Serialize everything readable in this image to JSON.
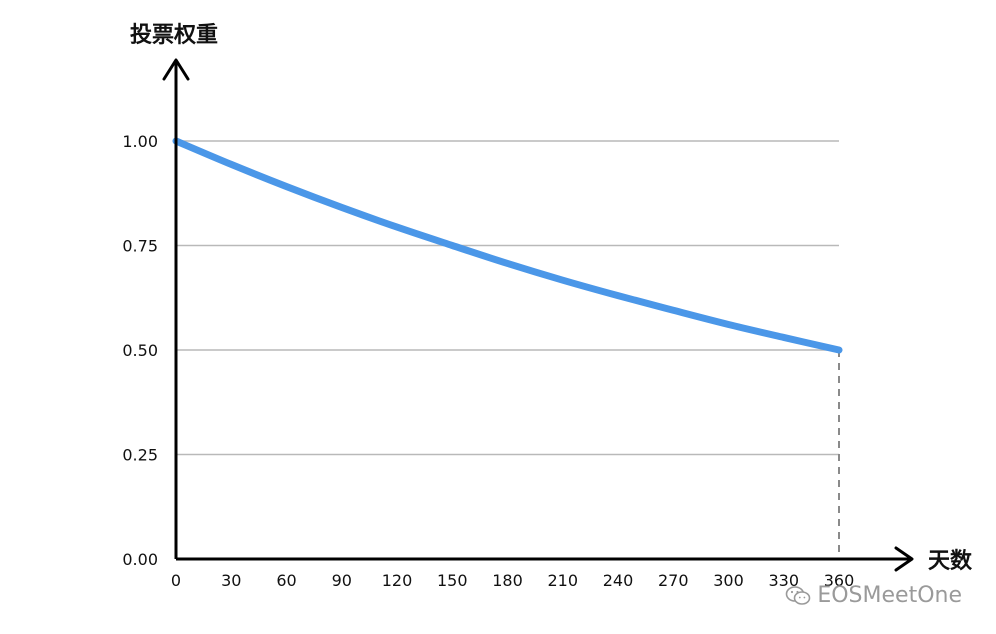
{
  "chart_data": {
    "type": "line",
    "title": "",
    "xlabel": "天数",
    "ylabel": "投票权重",
    "xlim": [
      0,
      360
    ],
    "ylim": [
      0,
      1
    ],
    "x_ticks": [
      "0",
      "30",
      "60",
      "90",
      "120",
      "150",
      "180",
      "210",
      "240",
      "270",
      "300",
      "330",
      "360"
    ],
    "y_ticks": [
      "0.00",
      "0.25",
      "0.50",
      "0.75",
      "1.00"
    ],
    "grid": true,
    "legend": "none",
    "series": [
      {
        "color": "#4b97e8",
        "x": [
          0,
          30,
          60,
          90,
          120,
          150,
          180,
          210,
          240,
          270,
          300,
          330,
          360
        ],
        "y": [
          1.0,
          0.944,
          0.891,
          0.841,
          0.794,
          0.75,
          0.707,
          0.667,
          0.63,
          0.595,
          0.561,
          0.53,
          0.5
        ]
      }
    ],
    "annotations": [
      {
        "type": "vertical-dashed-line",
        "x": 360,
        "from_y": 0,
        "to_y": 0.5,
        "color": "#8a8a8a"
      }
    ]
  },
  "watermark": {
    "text": "EOSMeetOne",
    "icon": "wechat-icon"
  }
}
